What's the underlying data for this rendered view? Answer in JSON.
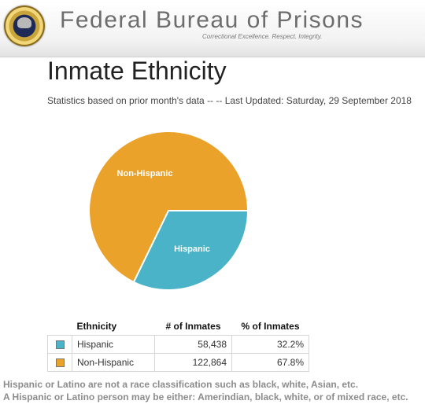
{
  "header": {
    "agency_name": "Federal Bureau of Prisons",
    "tagline": "Correctional Excellence.  Respect.  Integrity."
  },
  "page": {
    "title": "Inmate Ethnicity",
    "updated": "Statistics based on prior month's data -- -- Last Updated: Saturday, 29 September 2018"
  },
  "chart_data": {
    "type": "pie",
    "categories": [
      "Hispanic",
      "Non-Hispanic"
    ],
    "values": [
      32.2,
      67.8
    ],
    "colors": [
      "#4ab3c8",
      "#eaa22b"
    ],
    "slice_labels": [
      "Hispanic",
      "Non-Hispanic"
    ]
  },
  "table": {
    "headers": [
      "Ethnicity",
      "# of Inmates",
      "% of Inmates"
    ],
    "rows": [
      {
        "ethnicity": "Hispanic",
        "inmates": "58,438",
        "percent": "32.2%",
        "color": "#4ab3c8"
      },
      {
        "ethnicity": "Non-Hispanic",
        "inmates": "122,864",
        "percent": "67.8%",
        "color": "#eaa22b"
      }
    ]
  },
  "notes": [
    "Hispanic or Latino are not a race classification such as black, white, Asian, etc.",
    "A Hispanic or Latino person may be either: Amerindian, black, white, or of mixed race, etc."
  ]
}
